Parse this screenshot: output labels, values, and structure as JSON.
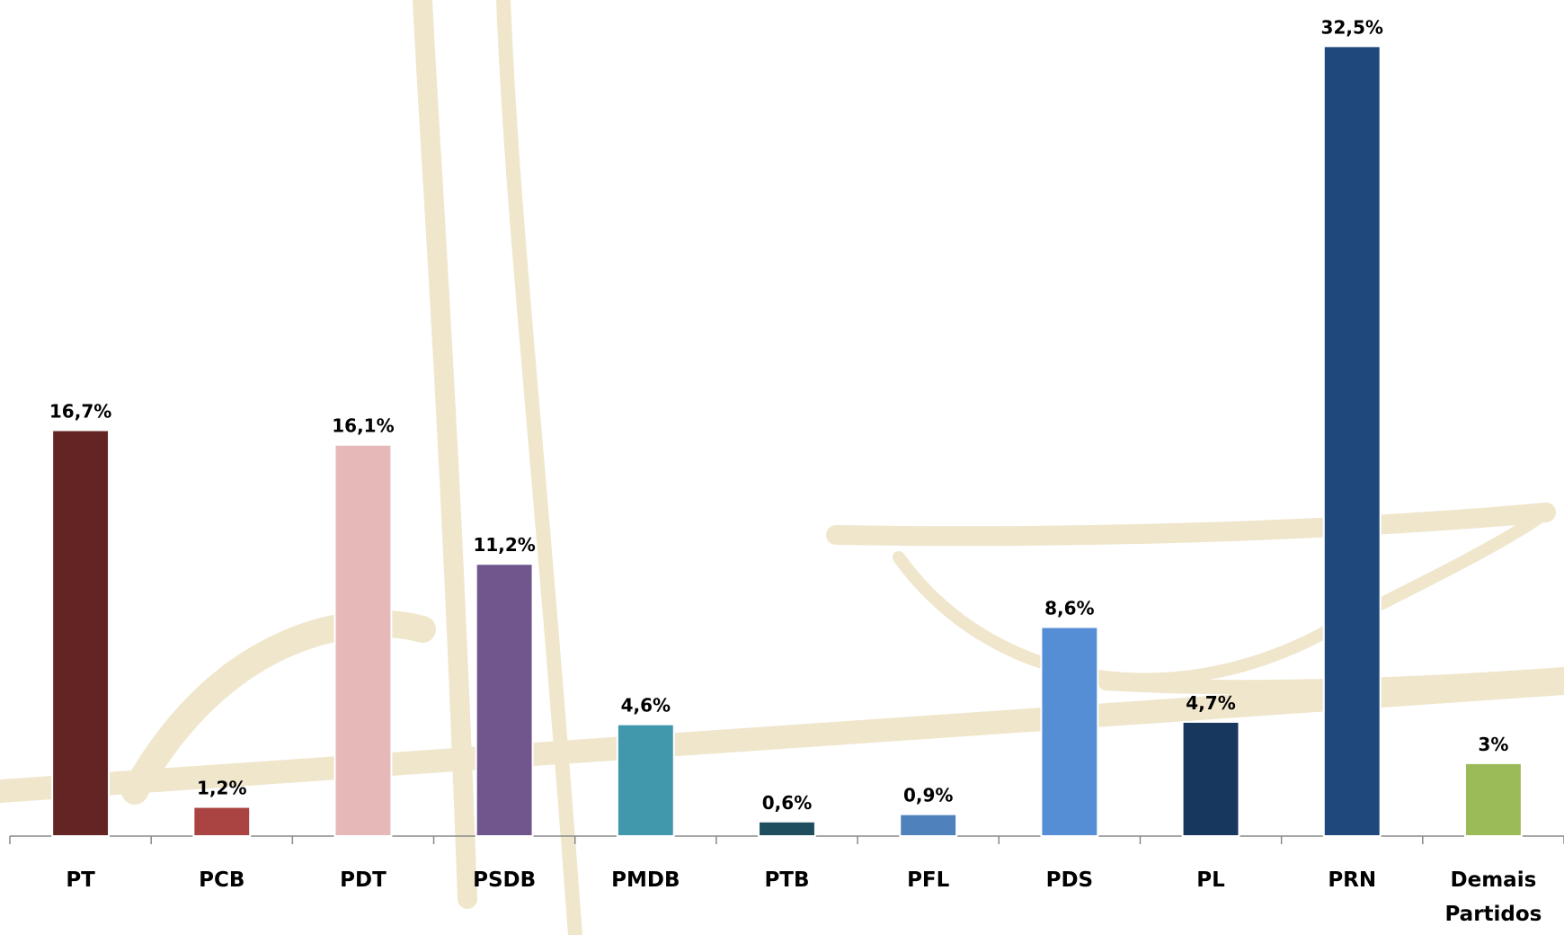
{
  "chart_data": {
    "type": "bar",
    "categories": [
      "PT",
      "PCB",
      "PDT",
      "PSDB",
      "PMDB",
      "PTB",
      "PFL",
      "PDS",
      "PL",
      "PRN",
      "Demais Partidos"
    ],
    "values": [
      16.7,
      1.2,
      16.1,
      11.2,
      4.6,
      0.6,
      0.9,
      8.6,
      4.7,
      32.5,
      3
    ],
    "value_labels": [
      "16,7%",
      "1,2%",
      "16,1%",
      "11,2%",
      "4,6%",
      "0,6%",
      "0,9%",
      "8,6%",
      "4,7%",
      "32,5%",
      "3%"
    ],
    "colors": [
      "#632523",
      "#a94442",
      "#e6b9b8",
      "#71568e",
      "#4198ad",
      "#1f4e5f",
      "#4f81bd",
      "#558ed5",
      "#17375e",
      "#1f497d",
      "#9bbb59"
    ],
    "ylim": [
      0,
      34.4
    ]
  }
}
